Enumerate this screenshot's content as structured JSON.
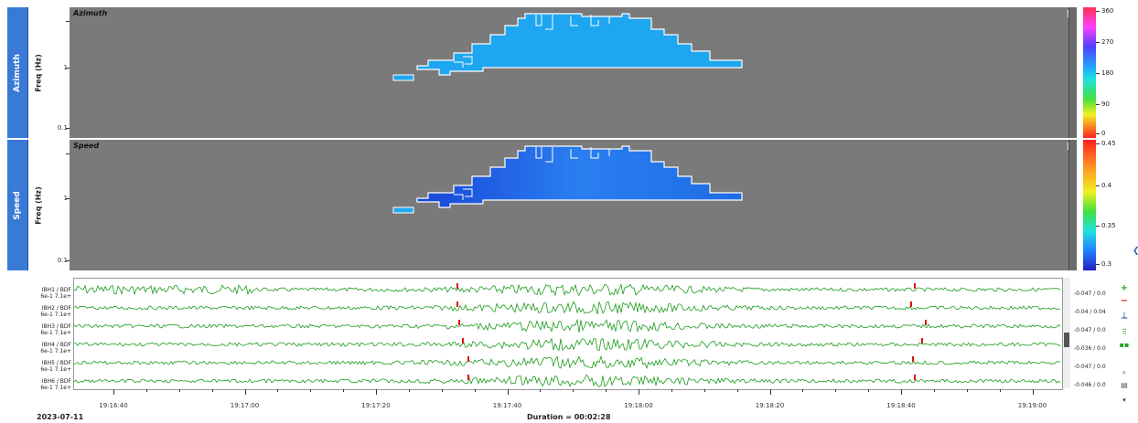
{
  "panels": [
    {
      "id": "azimuth",
      "tab_label": "Azimuth",
      "ylabel": "Freq (Hz)",
      "title": "Azimuth",
      "yticks": [
        "1",
        "0.1"
      ],
      "colorbar": {
        "labels": [
          "360",
          "270",
          "180",
          "90",
          "0"
        ]
      }
    },
    {
      "id": "speed",
      "tab_label": "Speed",
      "ylabel": "Freq (Hz)",
      "title": "Speed",
      "yticks": [
        "1",
        "0.1"
      ],
      "colorbar": {
        "labels": [
          "0.45",
          "0.4",
          "0.35",
          "0.3"
        ]
      }
    }
  ],
  "traces": [
    {
      "label": "IBH1 / BDF",
      "scale": "6e-1 7.1e+",
      "range": "-0.047 / 0.0"
    },
    {
      "label": "IBH2 / BDF",
      "scale": "6e-1 7.1e+",
      "range": "-0.04 / 0.04"
    },
    {
      "label": "IBH3 / BDF",
      "scale": "6e-1 7.1e+",
      "range": "-0.047 / 0.0"
    },
    {
      "label": "IBH4 / BDF",
      "scale": "6e-1 7.1e+",
      "range": "-0.036 / 0.0"
    },
    {
      "label": "IBH5 / BDF",
      "scale": "6e-1 7.1e+",
      "range": "-0.047 / 0.0"
    },
    {
      "label": "IBH6 / BDF",
      "scale": "6e-1 7.1e+",
      "range": "-0.046 / 0.0"
    }
  ],
  "time_axis": {
    "labels": [
      "19:16:40",
      "19:17:00",
      "19:17:20",
      "19:17:40",
      "19:18:00",
      "19:18:20",
      "19:18:40",
      "19:19:00"
    ]
  },
  "status": {
    "date": "2023-07-11",
    "duration": "Duration = 00:02:28"
  },
  "colors": {
    "plot_bg": "#7a7a7a",
    "azimuth_fill": "#1ea6f0",
    "speed_fill": "#1f6ee8",
    "trace": "#1a9a1a",
    "pick": "#e01010"
  },
  "icons": {
    "add": "plus-icon",
    "remove": "minus-icon",
    "pick": "pick-icon",
    "grid": "grid-icon",
    "zoom": "zoom-icon",
    "settings": "settings-icon"
  }
}
